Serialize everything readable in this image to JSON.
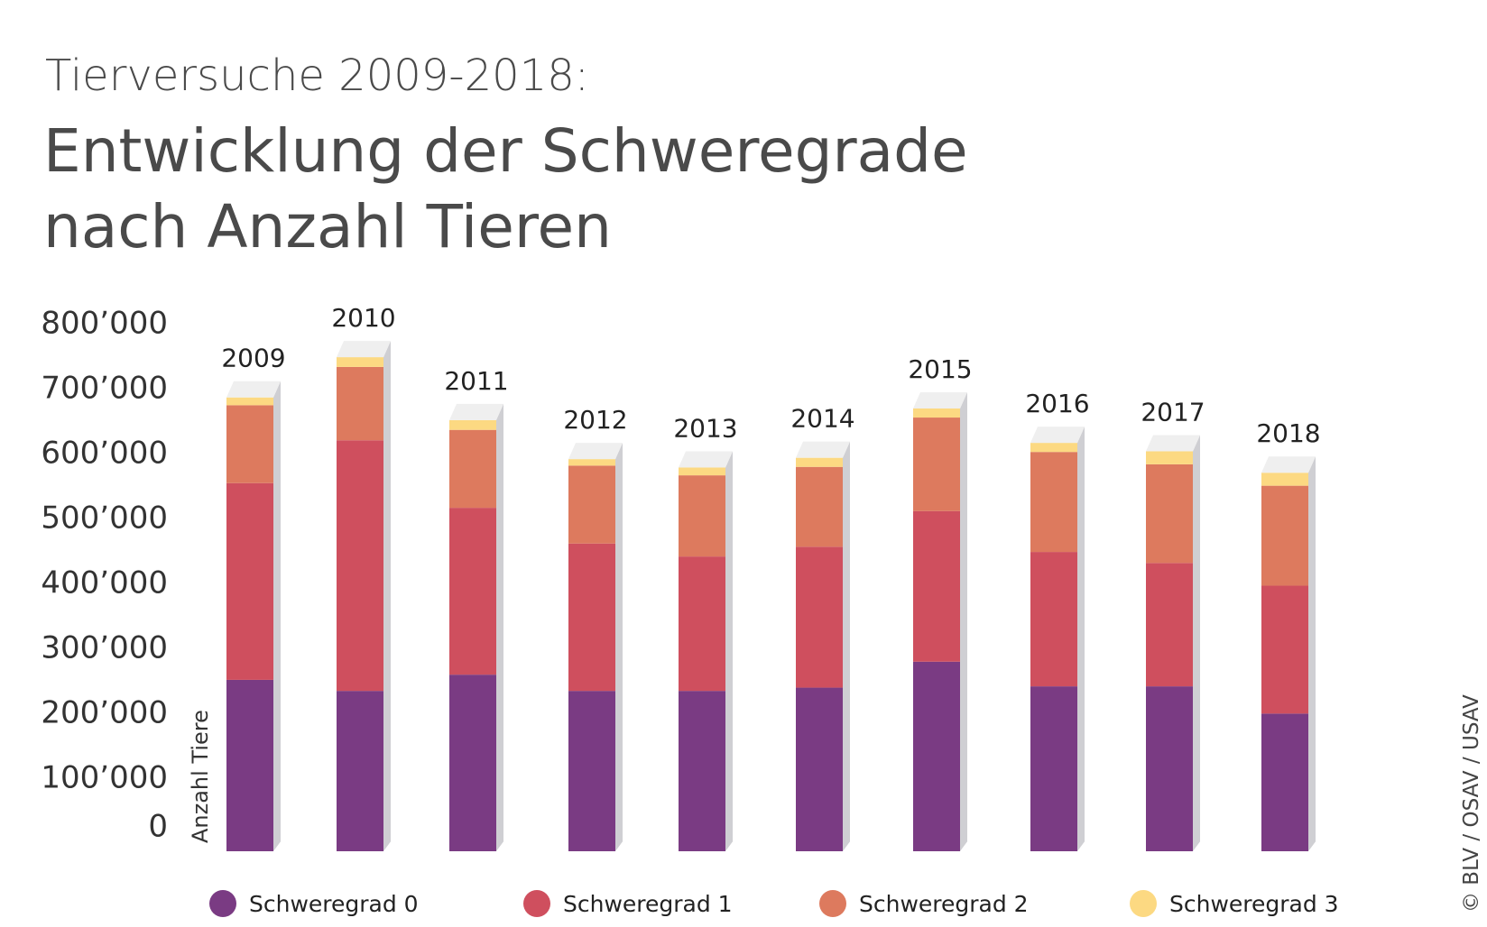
{
  "header": {
    "subtitle": "Tierversuche 2009-2018:",
    "title_line1": "Entwicklung der Schweregrade",
    "title_line2": "nach Anzahl Tieren"
  },
  "credit": "© BLV / OSAV / USAV",
  "colors": {
    "s0": "#7a3b83",
    "s1": "#cf4f5e",
    "s2": "#dd7a5e",
    "s3": "#fcd982",
    "top_face": "#efefef",
    "side_face": "#cfcfd3"
  },
  "chart_data": {
    "type": "bar",
    "stacked": true,
    "title": "Entwicklung der Schweregrade nach Anzahl Tieren",
    "ylabel": "Anzahl Tiere",
    "ylim": [
      0,
      800000
    ],
    "yticks": [
      0,
      100000,
      200000,
      300000,
      400000,
      500000,
      600000,
      700000,
      800000
    ],
    "ytick_labels": [
      "0",
      "100’000",
      "200’000",
      "300’000",
      "400’000",
      "500’000",
      "600’000",
      "700’000",
      "800’000"
    ],
    "grid": false,
    "legend_position": "bottom",
    "categories": [
      "2009",
      "2010",
      "2011",
      "2012",
      "2013",
      "2014",
      "2015",
      "2016",
      "2017",
      "2018"
    ],
    "series": [
      {
        "name": "Schweregrad 0",
        "values": [
          264000,
          247000,
          272000,
          247000,
          247000,
          252000,
          292000,
          254000,
          254000,
          212000
        ]
      },
      {
        "name": "Schweregrad 1",
        "values": [
          303000,
          386000,
          257000,
          227000,
          207000,
          217000,
          232000,
          207000,
          190000,
          197000
        ]
      },
      {
        "name": "Schweregrad 2",
        "values": [
          120000,
          113000,
          120000,
          120000,
          125000,
          123000,
          144000,
          154000,
          152000,
          154000
        ]
      },
      {
        "name": "Schweregrad 3",
        "values": [
          12000,
          15000,
          15000,
          10000,
          12000,
          14000,
          14000,
          14000,
          20000,
          20000
        ]
      }
    ]
  }
}
